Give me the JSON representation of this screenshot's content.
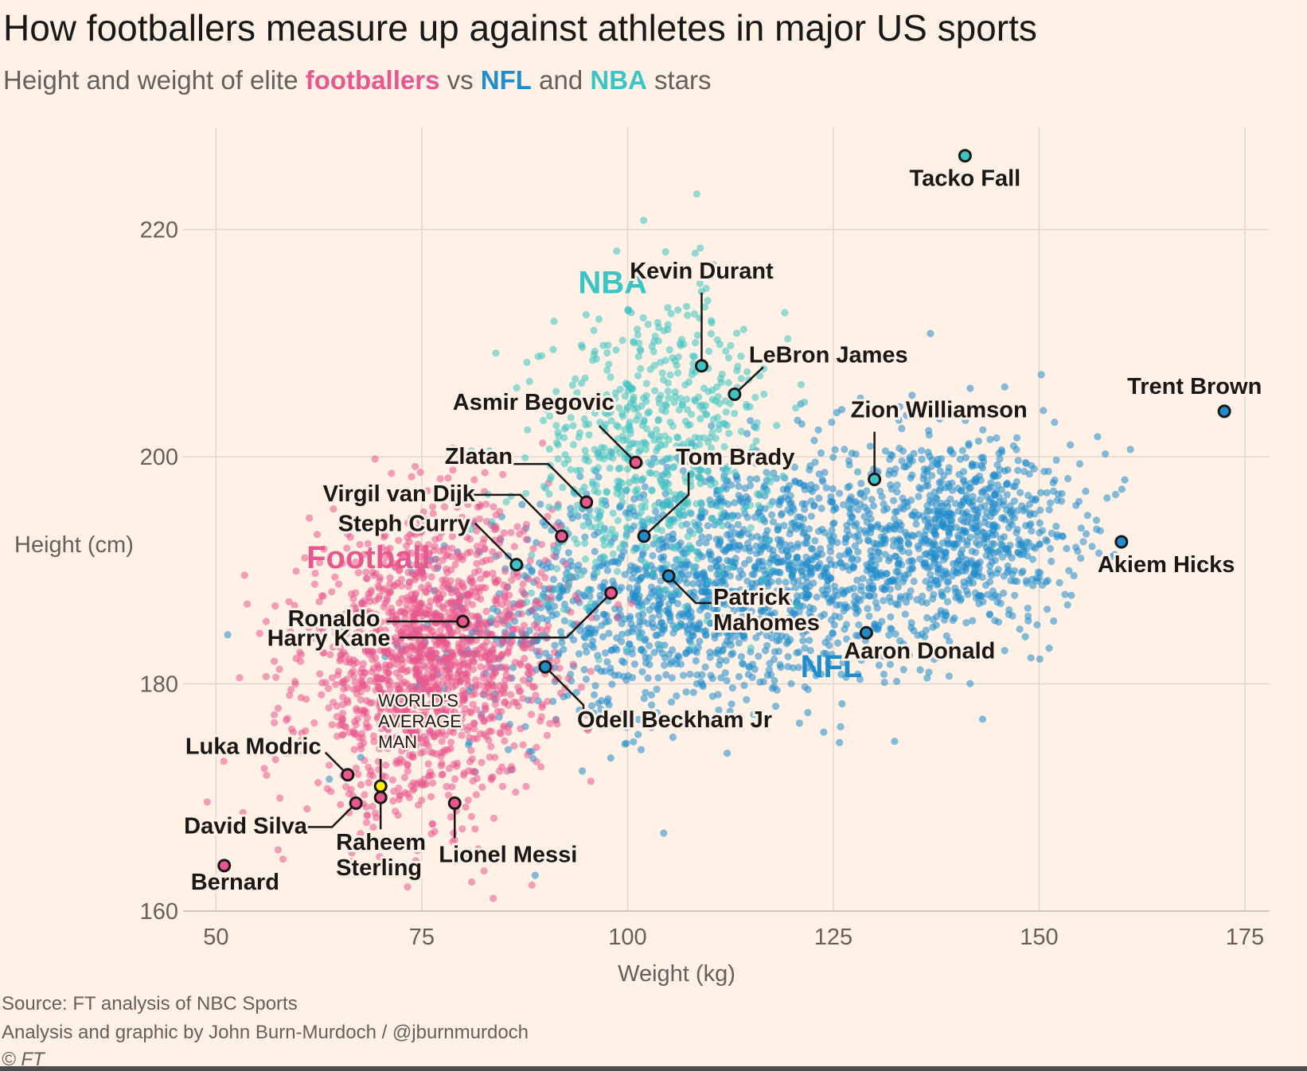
{
  "header": {
    "title": "How footballers measure up against athletes in major US sports",
    "subtitle_pre": "Height and weight of elite ",
    "subtitle_footballers": "footballers",
    "subtitle_vs": " vs ",
    "subtitle_nfl": "NFL",
    "subtitle_and": " and ",
    "subtitle_nba": "NBA",
    "subtitle_post": " stars"
  },
  "footer": {
    "source": "Source: FT analysis of NBC Sports",
    "credit": "Analysis and graphic by John Burn-Murdoch / @jburnmurdoch",
    "copyright": "© FT"
  },
  "colors": {
    "football": "#e8588e",
    "nfl": "#1f8ccc",
    "nba": "#3cc3c3",
    "average": "#fff200",
    "grid": "#e3d5c8",
    "background": "#fff1e5"
  },
  "chart_data": {
    "type": "scatter",
    "xlabel": "Weight (kg)",
    "ylabel": "Height (cm)",
    "xlim": [
      46,
      178
    ],
    "ylim": [
      160,
      229
    ],
    "xticks": [
      50,
      75,
      100,
      125,
      150,
      175
    ],
    "yticks": [
      160,
      180,
      200,
      220
    ],
    "grid": true,
    "group_labels": [
      {
        "text": "NBA",
        "x": 94,
        "y": 214.4,
        "group": "nba"
      },
      {
        "text": "Football",
        "x": 61,
        "y": 190.2,
        "group": "football"
      },
      {
        "text": "NFL",
        "x": 121,
        "y": 180.6,
        "group": "nfl"
      }
    ],
    "series": [
      {
        "name": "Football",
        "group": "football",
        "count": 1600,
        "center": [
          76,
          182
        ],
        "spread": [
          7.5,
          6.2
        ]
      },
      {
        "name": "NFL",
        "group": "nfl",
        "count": 1700,
        "center": [
          112,
          189
        ],
        "spread": [
          15,
          5.5
        ]
      },
      {
        "name": "NFL",
        "group": "nfl",
        "count": 700,
        "center": [
          141,
          193
        ],
        "spread": [
          7,
          4.5
        ]
      },
      {
        "name": "NBA",
        "group": "nba",
        "count": 650,
        "center": [
          103,
          201
        ],
        "spread": [
          7.5,
          6.5
        ]
      }
    ],
    "average_man": {
      "label": [
        "WORLD'S",
        "AVERAGE",
        "MAN"
      ],
      "x": 70,
      "y": 171
    },
    "highlights": [
      {
        "name": "Tacko Fall",
        "group": "nba",
        "x": 141,
        "y": 226.5
      },
      {
        "name": "Kevin Durant",
        "group": "nba",
        "x": 109,
        "y": 208
      },
      {
        "name": "LeBron James",
        "group": "nba",
        "x": 113,
        "y": 205.5
      },
      {
        "name": "Trent Brown",
        "group": "nfl",
        "x": 172.5,
        "y": 204
      },
      {
        "name": "Zion Williamson",
        "group": "nba",
        "x": 130,
        "y": 198
      },
      {
        "name": "Asmir Begovic",
        "group": "football",
        "x": 101,
        "y": 199.5
      },
      {
        "name": "Tom Brady",
        "group": "nfl",
        "x": 102,
        "y": 193
      },
      {
        "name": "Zlatan",
        "group": "football",
        "x": 95,
        "y": 196
      },
      {
        "name": "Virgil van Dijk",
        "group": "football",
        "x": 92,
        "y": 193
      },
      {
        "name": "Steph Curry",
        "group": "nba",
        "x": 86.5,
        "y": 190.5
      },
      {
        "name": "Akiem Hicks",
        "group": "nfl",
        "x": 160,
        "y": 192.5
      },
      {
        "name": "Patrick Mahomes",
        "group": "nfl",
        "x": 105,
        "y": 189.5
      },
      {
        "name": "Harry Kane",
        "group": "football",
        "x": 98,
        "y": 188
      },
      {
        "name": "Ronaldo",
        "group": "football",
        "x": 80,
        "y": 185.5
      },
      {
        "name": "Aaron Donald",
        "group": "nfl",
        "x": 129,
        "y": 184.5
      },
      {
        "name": "Odell Beckham Jr",
        "group": "nfl",
        "x": 90,
        "y": 181.5
      },
      {
        "name": "Luka Modric",
        "group": "football",
        "x": 66,
        "y": 172
      },
      {
        "name": "Raheem Sterling",
        "group": "football",
        "x": 70,
        "y": 170
      },
      {
        "name": "David Silva",
        "group": "football",
        "x": 67,
        "y": 169.5
      },
      {
        "name": "Lionel Messi",
        "group": "football",
        "x": 79,
        "y": 169.5
      },
      {
        "name": "Bernard",
        "group": "football",
        "x": 51,
        "y": 164
      }
    ]
  }
}
